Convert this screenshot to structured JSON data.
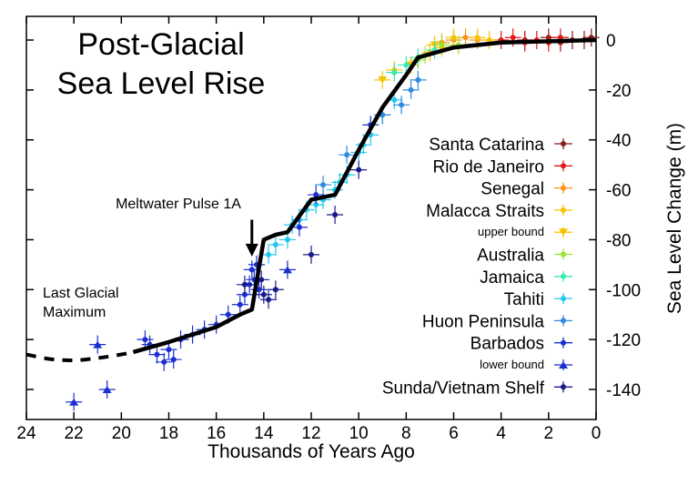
{
  "chart_data": {
    "type": "scatter",
    "title_lines": [
      "Post-Glacial",
      "Sea Level Rise"
    ],
    "xlabel": "Thousands of Years Ago",
    "ylabel": "Sea Level Change (m)",
    "xlim": [
      24,
      0
    ],
    "ylim": [
      -150,
      5
    ],
    "x_ticks": [
      24,
      22,
      20,
      18,
      16,
      14,
      12,
      10,
      8,
      6,
      4,
      2,
      0
    ],
    "y_ticks": [
      0,
      -20,
      -40,
      -60,
      -80,
      -100,
      -120,
      -140
    ],
    "grid": false,
    "legend_position": "right",
    "annotations": {
      "mwp_label": "Meltwater Pulse 1A",
      "mwp_arrow": {
        "x": 14.5,
        "y_from": -72,
        "y_to": -86
      },
      "lgm_line1": "Last Glacial",
      "lgm_line2": "Maximum"
    },
    "curve_solid": {
      "x": [
        19.5,
        18,
        16,
        15,
        14.5,
        14,
        13.5,
        13,
        12,
        11,
        10,
        9,
        8,
        7.5,
        6,
        4,
        2,
        0
      ],
      "y": [
        -125,
        -121,
        -115,
        -110,
        -108,
        -80,
        -78,
        -77,
        -64,
        -62,
        -44,
        -27,
        -14,
        -7,
        -3,
        -1,
        -0.5,
        0
      ]
    },
    "curve_dashed": {
      "x": [
        24,
        23,
        22,
        21,
        20,
        19.5
      ],
      "y": [
        -126,
        -128,
        -128.5,
        -127.5,
        -126,
        -125
      ]
    },
    "series": [
      {
        "name": "Santa Catarina",
        "color": "#8b1a1a",
        "marker": "circle",
        "points": [
          [
            1,
            0
          ],
          [
            0.5,
            0
          ],
          [
            2,
            1
          ],
          [
            1.5,
            -1
          ],
          [
            3,
            0
          ],
          [
            0.2,
            1
          ]
        ]
      },
      {
        "name": "Rio de Janeiro",
        "color": "#e01a1a",
        "marker": "circle",
        "points": [
          [
            3,
            -1
          ],
          [
            2.5,
            0
          ],
          [
            4,
            0
          ],
          [
            1.5,
            1
          ],
          [
            3.5,
            1
          ],
          [
            2,
            -1
          ]
        ]
      },
      {
        "name": "Senegal",
        "color": "#f7941d",
        "marker": "circle",
        "points": [
          [
            6,
            0
          ],
          [
            5.5,
            1
          ],
          [
            6.5,
            -1
          ],
          [
            5,
            0
          ]
        ]
      },
      {
        "name": "Malacca Straits",
        "color": "#f5c400",
        "marker": "circle",
        "points": [
          [
            8.5,
            -12
          ],
          [
            7,
            -5
          ],
          [
            6.5,
            -3
          ],
          [
            6,
            1
          ],
          [
            5,
            1
          ],
          [
            4.5,
            0
          ]
        ]
      },
      {
        "name": "upper bound",
        "color": "#f5c400",
        "marker": "triangle-down",
        "points": [
          [
            9,
            -16
          ],
          [
            7.8,
            -10
          ],
          [
            6.8,
            -2
          ]
        ]
      },
      {
        "name": "Australia",
        "color": "#9be22f",
        "marker": "circle",
        "points": [
          [
            7.2,
            -6
          ],
          [
            6.5,
            -2
          ],
          [
            7.5,
            -8
          ],
          [
            5.8,
            -2
          ]
        ]
      },
      {
        "name": "Jamaica",
        "color": "#3be8b0",
        "marker": "circle",
        "points": [
          [
            8,
            -10
          ],
          [
            7.5,
            -7
          ],
          [
            8.5,
            -13
          ],
          [
            6.8,
            -4
          ]
        ]
      },
      {
        "name": "Tahiti",
        "color": "#22c7f0",
        "marker": "circle",
        "points": [
          [
            13.8,
            -86
          ],
          [
            13,
            -80
          ],
          [
            12.5,
            -72
          ],
          [
            11.8,
            -66
          ],
          [
            11,
            -60
          ],
          [
            10.5,
            -54
          ],
          [
            10,
            -45
          ],
          [
            9.5,
            -38
          ],
          [
            9,
            -30
          ],
          [
            8.5,
            -24
          ],
          [
            12.8,
            -74
          ],
          [
            13.5,
            -82
          ],
          [
            10.8,
            -57
          ],
          [
            9.8,
            -42
          ],
          [
            11.5,
            -64
          ],
          [
            12.2,
            -68
          ]
        ]
      },
      {
        "name": "Huon Peninsula",
        "color": "#2f8ae0",
        "marker": "circle",
        "points": [
          [
            8.2,
            -26
          ],
          [
            7.5,
            -16
          ],
          [
            9,
            -30
          ],
          [
            10.5,
            -46
          ],
          [
            11.5,
            -58
          ],
          [
            7.8,
            -20
          ]
        ]
      },
      {
        "name": "Barbados",
        "color": "#1a2fd0",
        "marker": "circle",
        "points": [
          [
            18.8,
            -122
          ],
          [
            18.5,
            -126
          ],
          [
            18,
            -124
          ],
          [
            17.5,
            -120
          ],
          [
            17,
            -118
          ],
          [
            16.5,
            -116
          ],
          [
            16,
            -114
          ],
          [
            15.5,
            -110
          ],
          [
            14.8,
            -102
          ],
          [
            14.6,
            -98
          ],
          [
            14.4,
            -96
          ],
          [
            14.2,
            -100
          ],
          [
            14.5,
            -92
          ],
          [
            14.3,
            -90
          ],
          [
            12.5,
            -75
          ],
          [
            11.8,
            -62
          ],
          [
            9.5,
            -34
          ],
          [
            19,
            -120
          ],
          [
            18.2,
            -129
          ],
          [
            17.8,
            -128
          ],
          [
            15,
            -106
          ]
        ]
      },
      {
        "name": "lower bound",
        "color": "#1a2fd0",
        "marker": "triangle-up",
        "points": [
          [
            22,
            -145
          ],
          [
            20.6,
            -140
          ],
          [
            13,
            -92
          ],
          [
            21,
            -122
          ]
        ]
      },
      {
        "name": "Sunda/Vietnam Shelf",
        "color": "#1a1a8b",
        "marker": "circle",
        "points": [
          [
            13.5,
            -100
          ],
          [
            14,
            -102
          ],
          [
            14.8,
            -98
          ],
          [
            13.8,
            -104
          ],
          [
            12,
            -86
          ],
          [
            11,
            -70
          ],
          [
            10,
            -52
          ],
          [
            14.1,
            -96
          ]
        ]
      }
    ]
  }
}
